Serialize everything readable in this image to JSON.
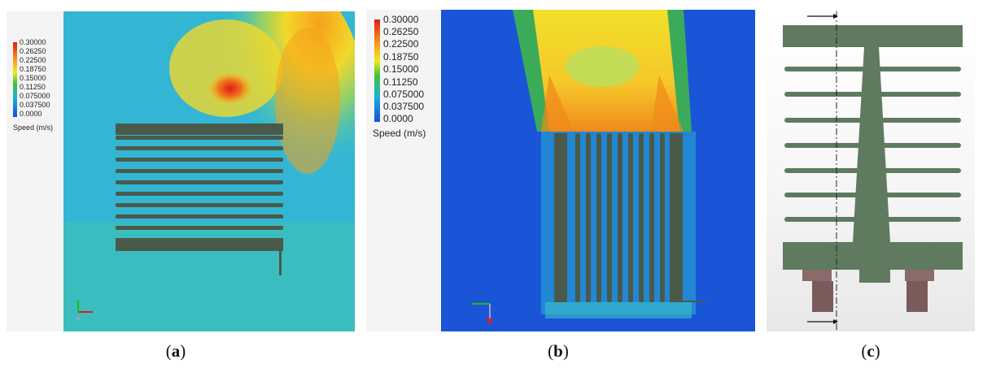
{
  "legend": {
    "title": "Speed (m/s)",
    "values": [
      "0.30000",
      "0.26250",
      "0.22500",
      "0.18750",
      "0.15000",
      "0.11250",
      "0.075000",
      "0.037500",
      "0.0000"
    ]
  },
  "captions": {
    "a": "a",
    "b": "b",
    "c": "c"
  },
  "colors": {
    "field_low": "#1a4fd6",
    "field_mid": "#2ec0a0",
    "field_high": "#e41a1a",
    "heatsink": "#4a5a4a",
    "cad_body": "#5f7a5f",
    "cad_base": "#7a5a5a"
  }
}
